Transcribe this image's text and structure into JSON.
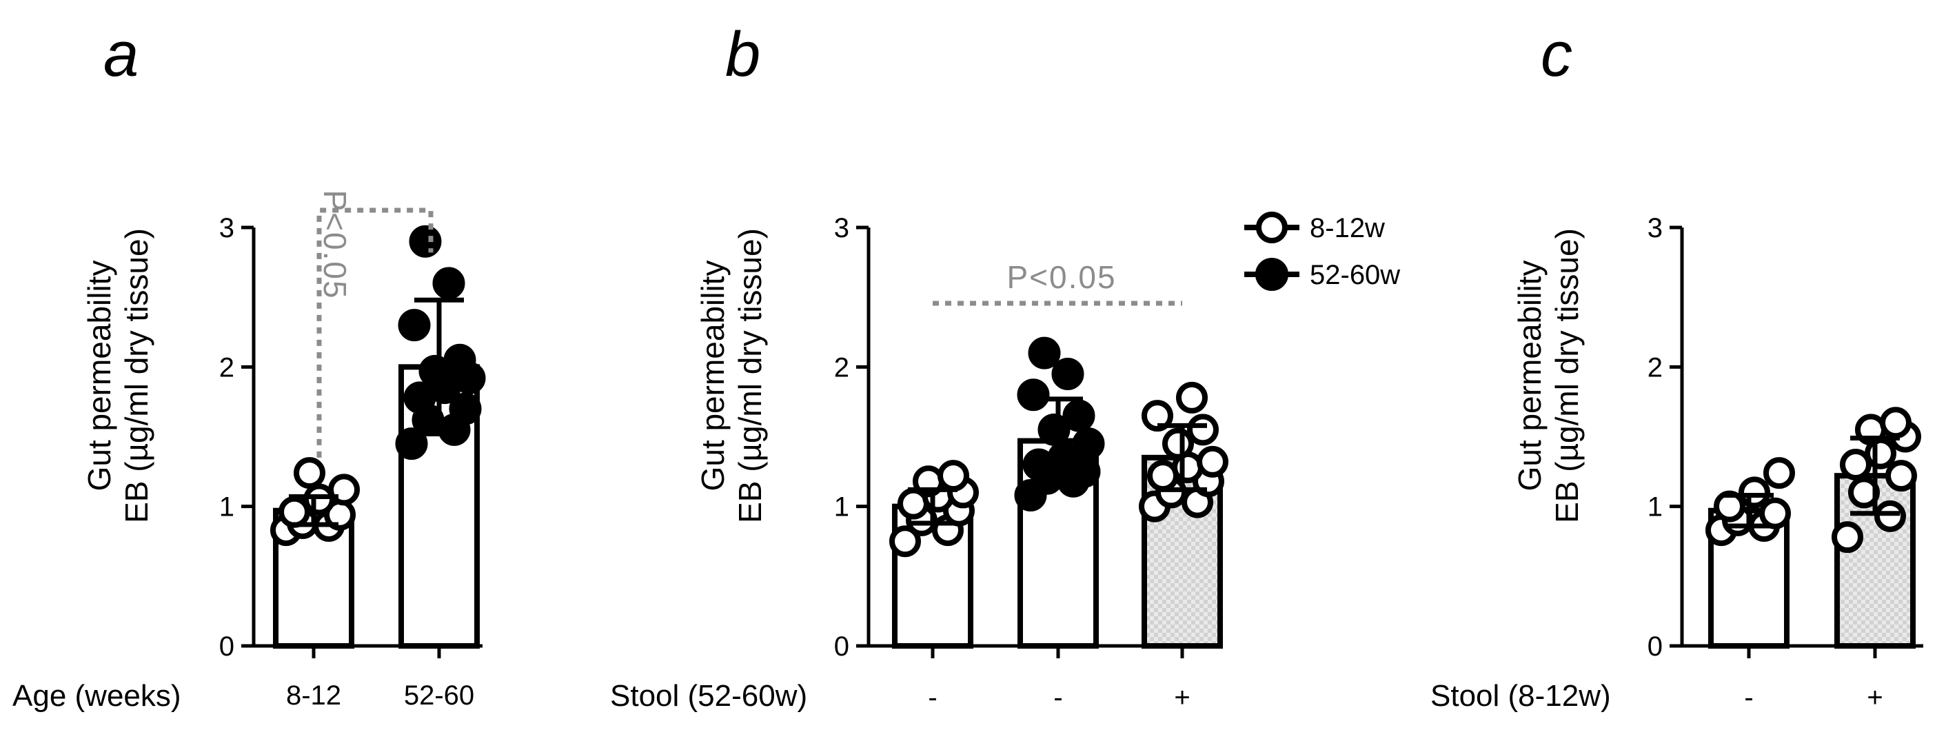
{
  "chart_data": [
    {
      "panel": "a",
      "type": "bar",
      "ylabel_line1": "Gut permeability",
      "ylabel_line2": "EB (µg/ml dry tissue)",
      "ylim": [
        0,
        3
      ],
      "yticks": [
        "0",
        "1",
        "2",
        "3"
      ],
      "row_label": "Age (weeks)",
      "categories": [
        "8-12",
        "52-60"
      ],
      "bars": [
        {
          "mean": 0.97,
          "sd": 0.1,
          "fill": "white",
          "points": [
            0.83,
            0.86,
            0.88,
            0.94,
            0.96,
            1.05,
            1.12,
            1.24
          ],
          "point_style": "open"
        },
        {
          "mean": 2.0,
          "sd": 0.48,
          "fill": "white",
          "points": [
            1.45,
            1.55,
            1.62,
            1.7,
            1.78,
            1.85,
            1.92,
            1.97,
            2.05,
            2.3,
            2.6,
            2.9
          ],
          "point_style": "filled"
        }
      ],
      "significance": "P<0.05",
      "grid": false
    },
    {
      "panel": "b",
      "type": "bar",
      "ylabel_line1": "Gut permeability",
      "ylabel_line2": "EB (µg/ml dry tissue)",
      "ylim": [
        0,
        3
      ],
      "yticks": [
        "0",
        "1",
        "2",
        "3"
      ],
      "row_label": "Stool (52-60w)",
      "categories": [
        "-",
        "-",
        "+"
      ],
      "bars": [
        {
          "mean": 1.0,
          "sd": 0.12,
          "fill": "white",
          "points": [
            0.75,
            0.83,
            0.9,
            0.97,
            1.02,
            1.07,
            1.1,
            1.18,
            1.22
          ],
          "point_style": "open"
        },
        {
          "mean": 1.47,
          "sd": 0.3,
          "fill": "white",
          "points": [
            1.08,
            1.18,
            1.2,
            1.25,
            1.3,
            1.35,
            1.45,
            1.55,
            1.65,
            1.8,
            1.95,
            2.1
          ],
          "point_style": "filled"
        },
        {
          "mean": 1.35,
          "sd": 0.23,
          "fill": "checkered",
          "points": [
            1.0,
            1.03,
            1.1,
            1.18,
            1.22,
            1.28,
            1.32,
            1.45,
            1.55,
            1.65,
            1.78
          ],
          "point_style": "open"
        }
      ],
      "significance": "P<0.05",
      "legend": {
        "placement": "top-right",
        "entries": [
          {
            "label": "8-12w",
            "style": "open"
          },
          {
            "label": "52-60w",
            "style": "filled"
          }
        ]
      },
      "grid": false
    },
    {
      "panel": "c",
      "type": "bar",
      "ylabel_line1": "Gut permeability",
      "ylabel_line2": "EB (µg/ml dry tissue)",
      "ylim": [
        0,
        3
      ],
      "yticks": [
        "0",
        "1",
        "2",
        "3"
      ],
      "row_label": "Stool (8-12w)",
      "categories": [
        "-",
        "+"
      ],
      "bars": [
        {
          "mean": 0.97,
          "sd": 0.11,
          "fill": "white",
          "points": [
            0.83,
            0.86,
            0.9,
            0.95,
            1.0,
            1.1,
            1.24
          ],
          "point_style": "open"
        },
        {
          "mean": 1.22,
          "sd": 0.27,
          "fill": "checkered",
          "points": [
            0.78,
            0.93,
            1.1,
            1.22,
            1.3,
            1.38,
            1.5,
            1.55,
            1.6
          ],
          "point_style": "open"
        }
      ],
      "grid": false
    }
  ],
  "colors": {
    "ink": "#000000",
    "significance": "#8c8c8c",
    "checker_light": "#e6e6e6",
    "checker_dark": "#cfcfcf"
  }
}
